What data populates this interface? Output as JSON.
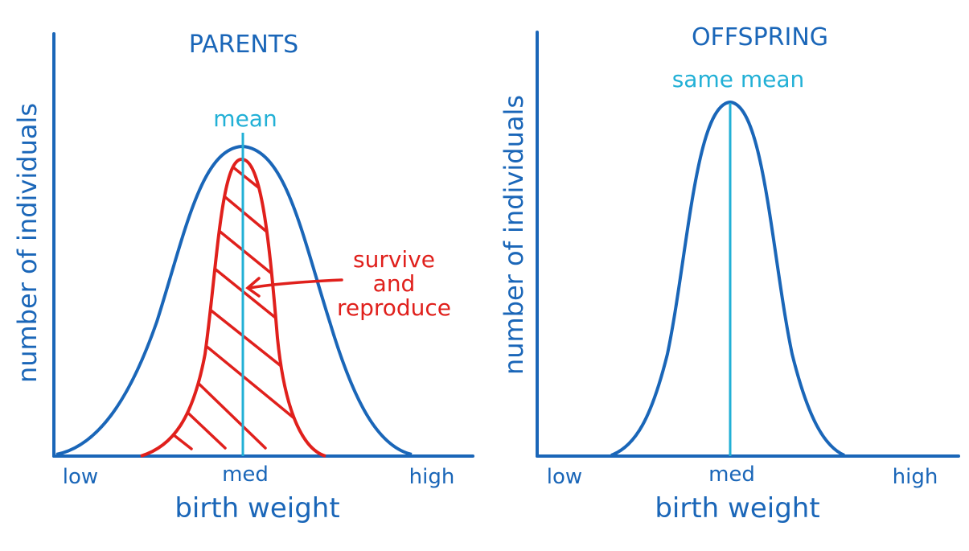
{
  "colors": {
    "axis": "#1a66b8",
    "mean_line": "#22b0d6",
    "survivors": "#e0201c"
  },
  "parents": {
    "title": "PARENTS",
    "mean_label": "mean",
    "ylabel": "number of individuals",
    "xlabel": "birth weight",
    "ticks": [
      "low",
      "med",
      "high"
    ],
    "annotation": [
      "survive",
      "and",
      "reproduce"
    ]
  },
  "offspring": {
    "title": "OFFSPRING",
    "mean_label": "same mean",
    "ylabel": "number of individuals",
    "xlabel": "birth weight",
    "ticks": [
      "low",
      "med",
      "high"
    ]
  }
}
